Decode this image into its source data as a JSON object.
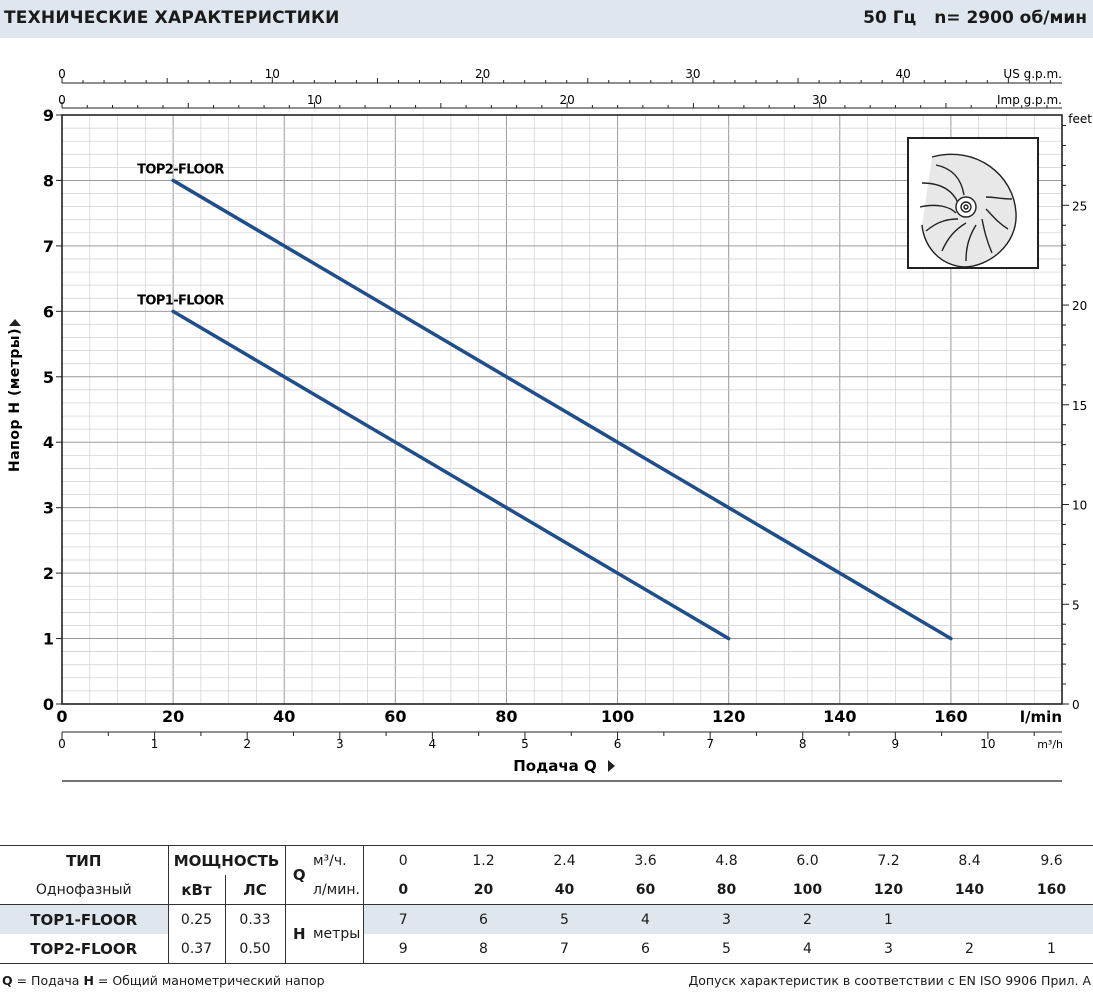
{
  "header": {
    "title": "ТЕХНИЧЕСКИЕ ХАРАКТЕРИСТИКИ",
    "frequency": "50 Гц",
    "speed": "n= 2900  об/мин"
  },
  "colors": {
    "curve": "#1f4e8a",
    "header_bg": "#dfe6ee",
    "grid_major": "#9a9a9a",
    "grid_minor": "#cfcfcf"
  },
  "chart_data": {
    "type": "line",
    "xlabel": "Подача  Q",
    "ylabel": "Напор  H  (метры)",
    "x_unit": "l/min",
    "y_unit_right": "feet",
    "xlim": [
      0,
      180
    ],
    "ylim": [
      0,
      9
    ],
    "x_ticks": [
      0,
      20,
      40,
      60,
      80,
      100,
      120,
      140,
      160
    ],
    "y_ticks": [
      0,
      1,
      2,
      3,
      4,
      5,
      6,
      7,
      8,
      9
    ],
    "secondary_axes": {
      "us_gpm": {
        "label": "US g.p.m.",
        "ticks": [
          0,
          10,
          20,
          30,
          40
        ]
      },
      "imp_gpm": {
        "label": "Imp g.p.m.",
        "ticks": [
          0,
          10,
          20,
          30
        ]
      },
      "m3h": {
        "label": "m³/h",
        "ticks": [
          0,
          1,
          2,
          3,
          4,
          5,
          6,
          7,
          8,
          9,
          10
        ]
      },
      "feet": {
        "label": "feet",
        "ticks": [
          0,
          5,
          10,
          15,
          20,
          25
        ]
      }
    },
    "series": [
      {
        "name": "TOP2-FLOOR",
        "x": [
          20,
          160
        ],
        "y": [
          8,
          1
        ]
      },
      {
        "name": "TOP1-FLOOR",
        "x": [
          20,
          120
        ],
        "y": [
          6,
          1
        ]
      }
    ],
    "grid": true
  },
  "table": {
    "h_type": "ТИП",
    "h_power": "МОЩНОСТЬ",
    "h_phase": "Однофазный",
    "h_kw": "кВт",
    "h_hp": "ЛС",
    "q_label": "Q",
    "q_unit_m3": "м³/ч.",
    "q_unit_lmin": "л/мин.",
    "h_label": "H",
    "h_unit": "метры",
    "q_m3": [
      "0",
      "1.2",
      "2.4",
      "3.6",
      "4.8",
      "6.0",
      "7.2",
      "8.4",
      "9.6"
    ],
    "q_lmin": [
      "0",
      "20",
      "40",
      "60",
      "80",
      "100",
      "120",
      "140",
      "160"
    ],
    "rows": [
      {
        "model": "TOP1-FLOOR",
        "kw": "0.25",
        "hp": "0.33",
        "h": [
          "7",
          "6",
          "5",
          "4",
          "3",
          "2",
          "1",
          "",
          ""
        ]
      },
      {
        "model": "TOP2-FLOOR",
        "kw": "0.37",
        "hp": "0.50",
        "h": [
          "9",
          "8",
          "7",
          "6",
          "5",
          "4",
          "3",
          "2",
          "1"
        ]
      }
    ]
  },
  "footer": {
    "q_key": "Q",
    "q_def": " = Подача   ",
    "h_key": "H",
    "h_def": " = Общий манометрический напор",
    "tolerance": "Допуск характеристик в соответствии с EN ISO 9906 Прил. A"
  }
}
